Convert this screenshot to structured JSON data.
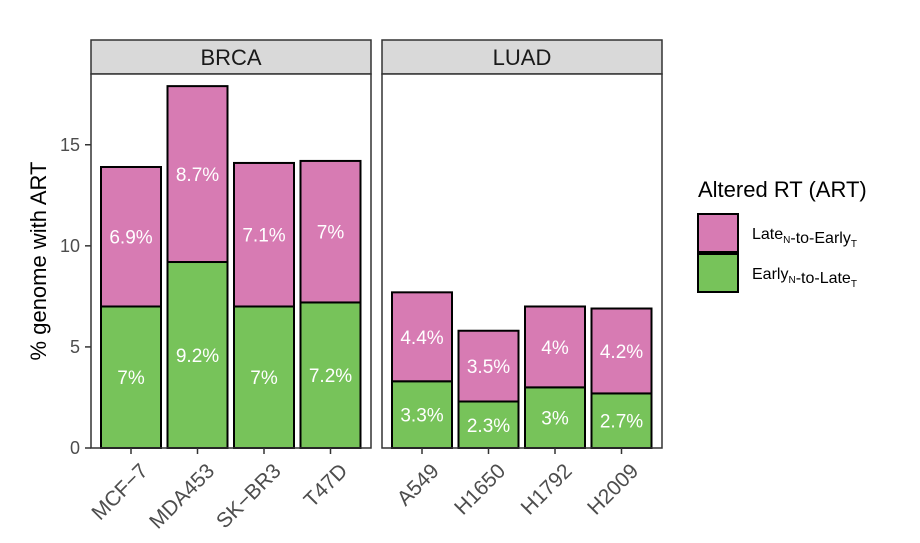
{
  "chart_data": {
    "type": "bar",
    "stacked": true,
    "ylabel": "% genome with ART",
    "ylim": [
      0,
      18.5
    ],
    "yticks": [
      0,
      5,
      10,
      15
    ],
    "grid": false,
    "legend": {
      "title": "Altered RT (ART)",
      "placement": "right",
      "entries": [
        {
          "key": "late_to_early",
          "base1": "Late",
          "sub1": "N",
          "mid": "-to-",
          "base2": "Early",
          "sub2": "T",
          "color": "#D77BB3"
        },
        {
          "key": "early_to_late",
          "base1": "Early",
          "sub1": "N",
          "mid": "-to-",
          "base2": "Late",
          "sub2": "T",
          "color": "#77C35A"
        }
      ]
    },
    "panels": [
      {
        "name": "BRCA",
        "categories": [
          "MCF−7",
          "MDA453",
          "SK−BR3",
          "T47D"
        ],
        "series": [
          {
            "key": "early_to_late",
            "values": [
              7.0,
              9.2,
              7.0,
              7.2
            ],
            "labels": [
              "7%",
              "9.2%",
              "7%",
              "7.2%"
            ]
          },
          {
            "key": "late_to_early",
            "values": [
              6.9,
              8.7,
              7.1,
              7.0
            ],
            "labels": [
              "6.9%",
              "8.7%",
              "7.1%",
              "7%"
            ]
          }
        ]
      },
      {
        "name": "LUAD",
        "categories": [
          "A549",
          "H1650",
          "H1792",
          "H2009"
        ],
        "series": [
          {
            "key": "early_to_late",
            "values": [
              3.3,
              2.3,
              3.0,
              2.7
            ],
            "labels": [
              "3.3%",
              "2.3%",
              "3%",
              "2.7%"
            ]
          },
          {
            "key": "late_to_early",
            "values": [
              4.4,
              3.5,
              4.0,
              4.2
            ],
            "labels": [
              "4.4%",
              "3.5%",
              "4%",
              "4.2%"
            ]
          }
        ]
      }
    ]
  }
}
